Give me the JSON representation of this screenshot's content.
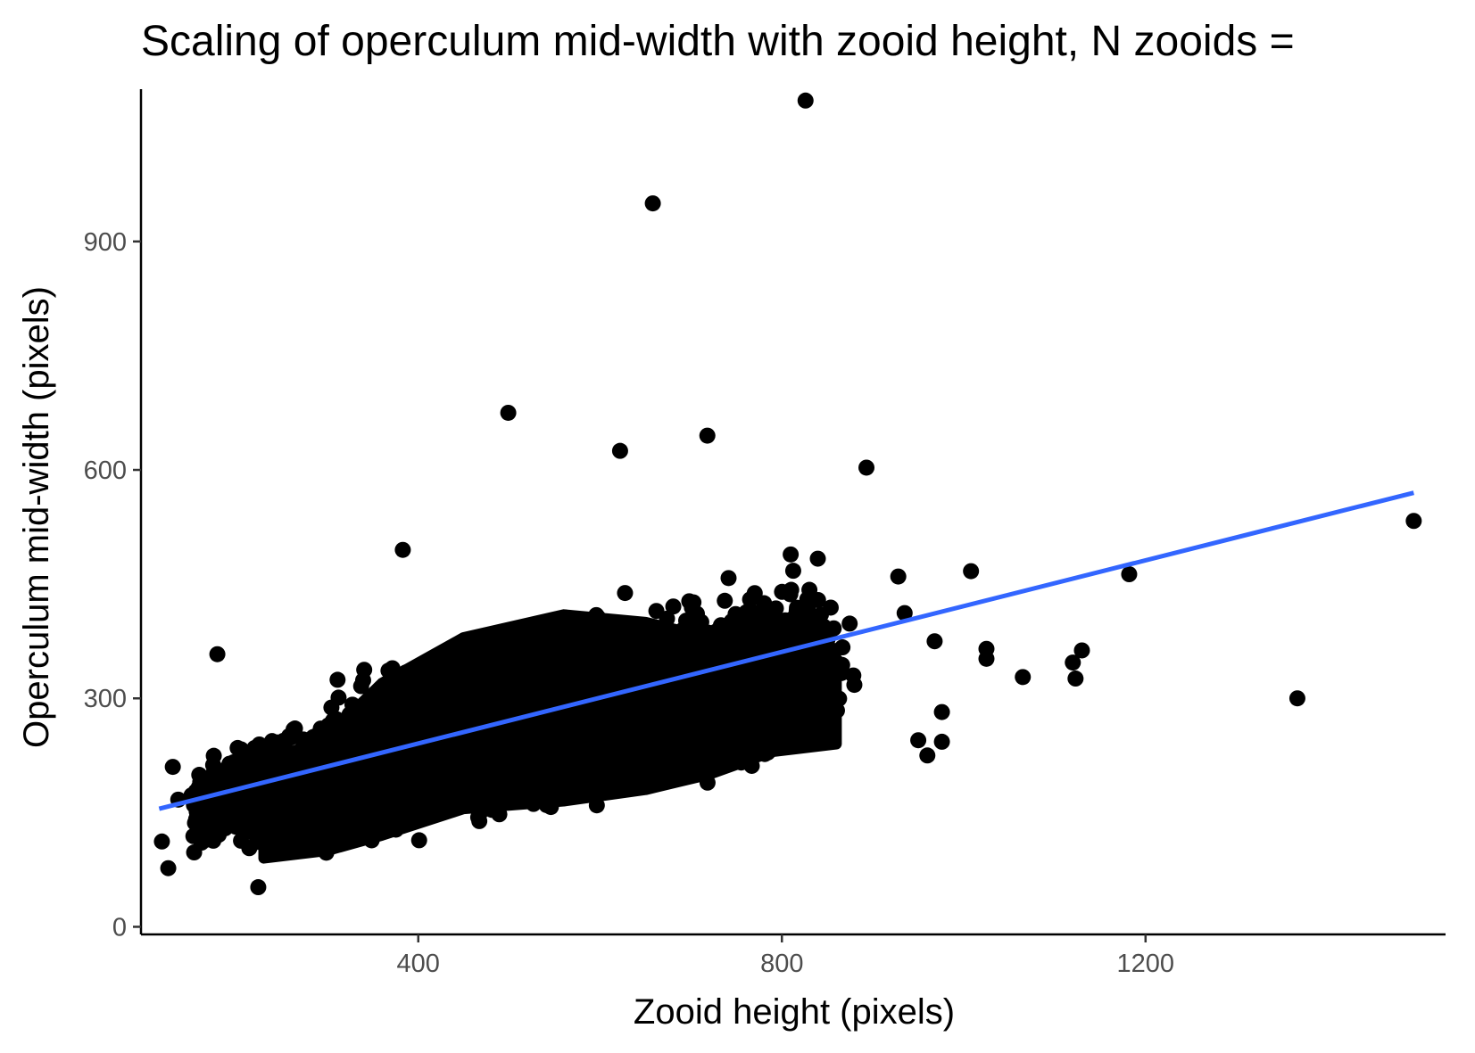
{
  "chart_data": {
    "type": "scatter",
    "title": "Scaling of operculum mid-width with zooid height, N zooids =",
    "xlabel": "Zooid height (pixels)",
    "ylabel": "Operculum mid-width (pixels)",
    "xlim": [
      95,
      1530
    ],
    "ylim": [
      -10,
      1100
    ],
    "x_ticks": [
      400,
      800,
      1200
    ],
    "x_tick_labels": [
      "400",
      "800",
      "1200"
    ],
    "y_ticks": [
      0,
      300,
      600,
      900
    ],
    "y_tick_labels": [
      "0",
      "300",
      "600",
      "900"
    ],
    "grid": false,
    "legend": "none",
    "point_color": "#000000",
    "series": [
      {
        "values": [
          {
            "x": 826,
            "y": 1085
          },
          {
            "x": 658,
            "y": 950
          },
          {
            "x": 499,
            "y": 675
          },
          {
            "x": 718,
            "y": 645
          },
          {
            "x": 622,
            "y": 625
          },
          {
            "x": 893,
            "y": 603
          },
          {
            "x": 1495,
            "y": 533
          },
          {
            "x": 1182,
            "y": 463
          },
          {
            "x": 1367,
            "y": 300
          },
          {
            "x": 1008,
            "y": 467
          },
          {
            "x": 1025,
            "y": 365
          },
          {
            "x": 1025,
            "y": 352
          },
          {
            "x": 1065,
            "y": 328
          },
          {
            "x": 1120,
            "y": 347
          },
          {
            "x": 1130,
            "y": 363
          },
          {
            "x": 1123,
            "y": 326
          },
          {
            "x": 976,
            "y": 282
          },
          {
            "x": 976,
            "y": 243
          },
          {
            "x": 950,
            "y": 245
          },
          {
            "x": 960,
            "y": 225
          },
          {
            "x": 968,
            "y": 375
          },
          {
            "x": 935,
            "y": 412
          },
          {
            "x": 928,
            "y": 460
          },
          {
            "x": 383,
            "y": 495
          },
          {
            "x": 179,
            "y": 358
          },
          {
            "x": 130,
            "y": 210
          },
          {
            "x": 136,
            "y": 167
          },
          {
            "x": 118,
            "y": 112
          },
          {
            "x": 125,
            "y": 77
          },
          {
            "x": 224,
            "y": 52
          }
        ]
      }
    ],
    "trend_line": {
      "color": "#3366ff",
      "points": [
        {
          "x": 115,
          "y": 155
        },
        {
          "x": 1495,
          "y": 570
        }
      ]
    }
  }
}
